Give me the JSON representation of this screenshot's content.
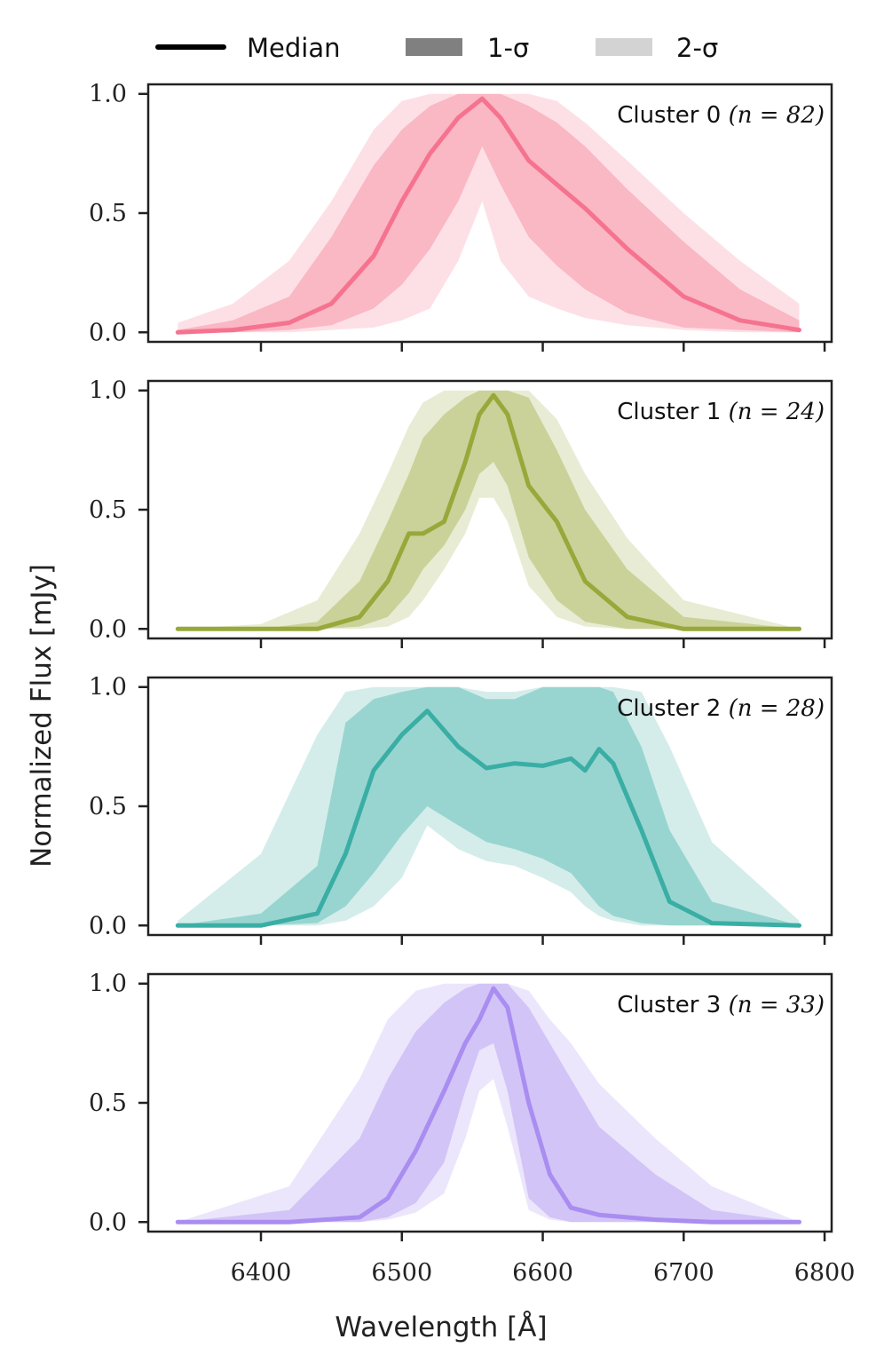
{
  "legend": {
    "median_label": "Median",
    "one_sigma_label": "1-σ",
    "two_sigma_label": "2-σ",
    "median_color": "#000000",
    "one_sigma_color": "#808080",
    "two_sigma_color": "#d3d3d3"
  },
  "xlabel": "Wavelength [Å]",
  "ylabel": "Normalized Flux [mJy]",
  "chart_data": {
    "type": "area",
    "x_range": [
      6320,
      6805
    ],
    "y_range": [
      -0.04,
      1.04
    ],
    "xticks": [
      6400,
      6500,
      6600,
      6700,
      6800
    ],
    "xtick_labels": [
      "6400",
      "6500",
      "6600",
      "6700",
      "6800"
    ],
    "yticks": [
      0.0,
      0.5,
      1.0
    ],
    "ytick_labels": [
      "0.0",
      "0.5",
      "1.0"
    ],
    "panels": [
      {
        "title": "Cluster 0 (n = 82)",
        "cluster_text": "Cluster 0",
        "n_text": "(n = 82)",
        "color": "#f5738f",
        "x": [
          6341,
          6380,
          6420,
          6450,
          6480,
          6500,
          6520,
          6540,
          6557,
          6570,
          6590,
          6610,
          6630,
          6660,
          6700,
          6740,
          6782
        ],
        "median": [
          0.0,
          0.01,
          0.04,
          0.12,
          0.32,
          0.55,
          0.75,
          0.9,
          0.98,
          0.9,
          0.72,
          0.62,
          0.52,
          0.35,
          0.15,
          0.05,
          0.01
        ],
        "sigma1_low": [
          0.0,
          0.0,
          0.01,
          0.03,
          0.1,
          0.2,
          0.35,
          0.55,
          0.78,
          0.62,
          0.4,
          0.28,
          0.18,
          0.08,
          0.02,
          0.01,
          0.0
        ],
        "sigma1_high": [
          0.01,
          0.05,
          0.15,
          0.4,
          0.7,
          0.85,
          0.95,
          1.0,
          1.0,
          1.0,
          0.95,
          0.88,
          0.78,
          0.6,
          0.38,
          0.18,
          0.05
        ],
        "sigma2_low": [
          0.0,
          0.0,
          0.0,
          0.01,
          0.02,
          0.05,
          0.1,
          0.3,
          0.55,
          0.3,
          0.15,
          0.1,
          0.06,
          0.03,
          0.01,
          0.0,
          0.0
        ],
        "sigma2_high": [
          0.04,
          0.12,
          0.3,
          0.55,
          0.85,
          0.97,
          1.0,
          1.0,
          1.0,
          1.0,
          1.0,
          0.97,
          0.88,
          0.72,
          0.5,
          0.3,
          0.12
        ]
      },
      {
        "title": "Cluster 1 (n = 24)",
        "cluster_text": "Cluster 1",
        "n_text": "(n = 24)",
        "color": "#98a83a",
        "x": [
          6341,
          6400,
          6440,
          6470,
          6490,
          6505,
          6515,
          6530,
          6545,
          6555,
          6565,
          6575,
          6590,
          6610,
          6630,
          6660,
          6700,
          6782
        ],
        "median": [
          0.0,
          0.0,
          0.0,
          0.05,
          0.2,
          0.4,
          0.4,
          0.45,
          0.7,
          0.9,
          0.98,
          0.9,
          0.6,
          0.45,
          0.2,
          0.05,
          0.0,
          0.0
        ],
        "sigma1_low": [
          0.0,
          0.0,
          0.0,
          0.01,
          0.05,
          0.15,
          0.25,
          0.35,
          0.5,
          0.65,
          0.7,
          0.6,
          0.3,
          0.12,
          0.03,
          0.0,
          0.0,
          0.0
        ],
        "sigma1_high": [
          0.0,
          0.0,
          0.03,
          0.2,
          0.45,
          0.65,
          0.8,
          0.9,
          0.97,
          1.0,
          1.0,
          1.0,
          0.97,
          0.75,
          0.5,
          0.25,
          0.05,
          0.0
        ],
        "sigma2_low": [
          0.0,
          0.0,
          0.0,
          0.0,
          0.01,
          0.05,
          0.12,
          0.25,
          0.4,
          0.55,
          0.55,
          0.45,
          0.18,
          0.05,
          0.01,
          0.0,
          0.0,
          0.0
        ],
        "sigma2_high": [
          0.0,
          0.02,
          0.12,
          0.4,
          0.65,
          0.85,
          0.95,
          1.0,
          1.0,
          1.0,
          1.0,
          1.0,
          1.0,
          0.88,
          0.65,
          0.38,
          0.12,
          0.0
        ]
      },
      {
        "title": "Cluster 2 (n = 28)",
        "cluster_text": "Cluster 2",
        "n_text": "(n = 28)",
        "color": "#3aaea5",
        "x": [
          6341,
          6400,
          6440,
          6460,
          6480,
          6500,
          6518,
          6540,
          6560,
          6580,
          6600,
          6620,
          6630,
          6640,
          6650,
          6670,
          6690,
          6720,
          6782
        ],
        "median": [
          0.0,
          0.0,
          0.05,
          0.3,
          0.65,
          0.8,
          0.9,
          0.75,
          0.66,
          0.68,
          0.67,
          0.7,
          0.65,
          0.74,
          0.68,
          0.4,
          0.1,
          0.01,
          0.0
        ],
        "sigma1_low": [
          0.0,
          0.0,
          0.01,
          0.08,
          0.22,
          0.38,
          0.5,
          0.42,
          0.35,
          0.32,
          0.28,
          0.22,
          0.15,
          0.08,
          0.04,
          0.01,
          0.0,
          0.0,
          0.0
        ],
        "sigma1_high": [
          0.0,
          0.05,
          0.25,
          0.85,
          0.95,
          0.98,
          1.0,
          1.0,
          0.95,
          0.95,
          1.0,
          1.0,
          1.0,
          1.0,
          0.98,
          0.75,
          0.4,
          0.1,
          0.0
        ],
        "sigma2_low": [
          0.0,
          0.0,
          0.0,
          0.02,
          0.08,
          0.2,
          0.42,
          0.32,
          0.27,
          0.25,
          0.2,
          0.14,
          0.08,
          0.04,
          0.02,
          0.0,
          0.0,
          0.0,
          0.0
        ],
        "sigma2_high": [
          0.02,
          0.3,
          0.8,
          0.98,
          1.0,
          1.0,
          1.0,
          1.0,
          0.98,
          0.98,
          1.0,
          1.0,
          1.0,
          1.0,
          1.0,
          0.98,
          0.75,
          0.35,
          0.02
        ]
      },
      {
        "title": "Cluster 3 (n = 33)",
        "cluster_text": "Cluster 3",
        "n_text": "(n = 33)",
        "color": "#a98df0",
        "x": [
          6341,
          6420,
          6470,
          6490,
          6510,
          6530,
          6545,
          6555,
          6565,
          6575,
          6590,
          6605,
          6620,
          6640,
          6680,
          6720,
          6782
        ],
        "median": [
          0.0,
          0.0,
          0.02,
          0.1,
          0.3,
          0.55,
          0.75,
          0.85,
          0.98,
          0.9,
          0.5,
          0.2,
          0.06,
          0.03,
          0.01,
          0.0,
          0.0
        ],
        "sigma1_low": [
          0.0,
          0.0,
          0.0,
          0.02,
          0.08,
          0.25,
          0.55,
          0.72,
          0.75,
          0.55,
          0.1,
          0.02,
          0.0,
          0.0,
          0.0,
          0.0,
          0.0
        ],
        "sigma1_high": [
          0.0,
          0.05,
          0.35,
          0.6,
          0.8,
          0.92,
          0.98,
          1.0,
          1.0,
          1.0,
          0.9,
          0.75,
          0.6,
          0.4,
          0.2,
          0.05,
          0.0
        ],
        "sigma2_low": [
          0.0,
          0.0,
          0.0,
          0.01,
          0.04,
          0.12,
          0.35,
          0.55,
          0.6,
          0.4,
          0.05,
          0.01,
          0.0,
          0.0,
          0.0,
          0.0,
          0.0
        ],
        "sigma2_high": [
          0.0,
          0.15,
          0.6,
          0.85,
          0.97,
          1.0,
          1.0,
          1.0,
          1.0,
          1.0,
          0.97,
          0.85,
          0.75,
          0.58,
          0.35,
          0.15,
          0.0
        ]
      }
    ]
  }
}
